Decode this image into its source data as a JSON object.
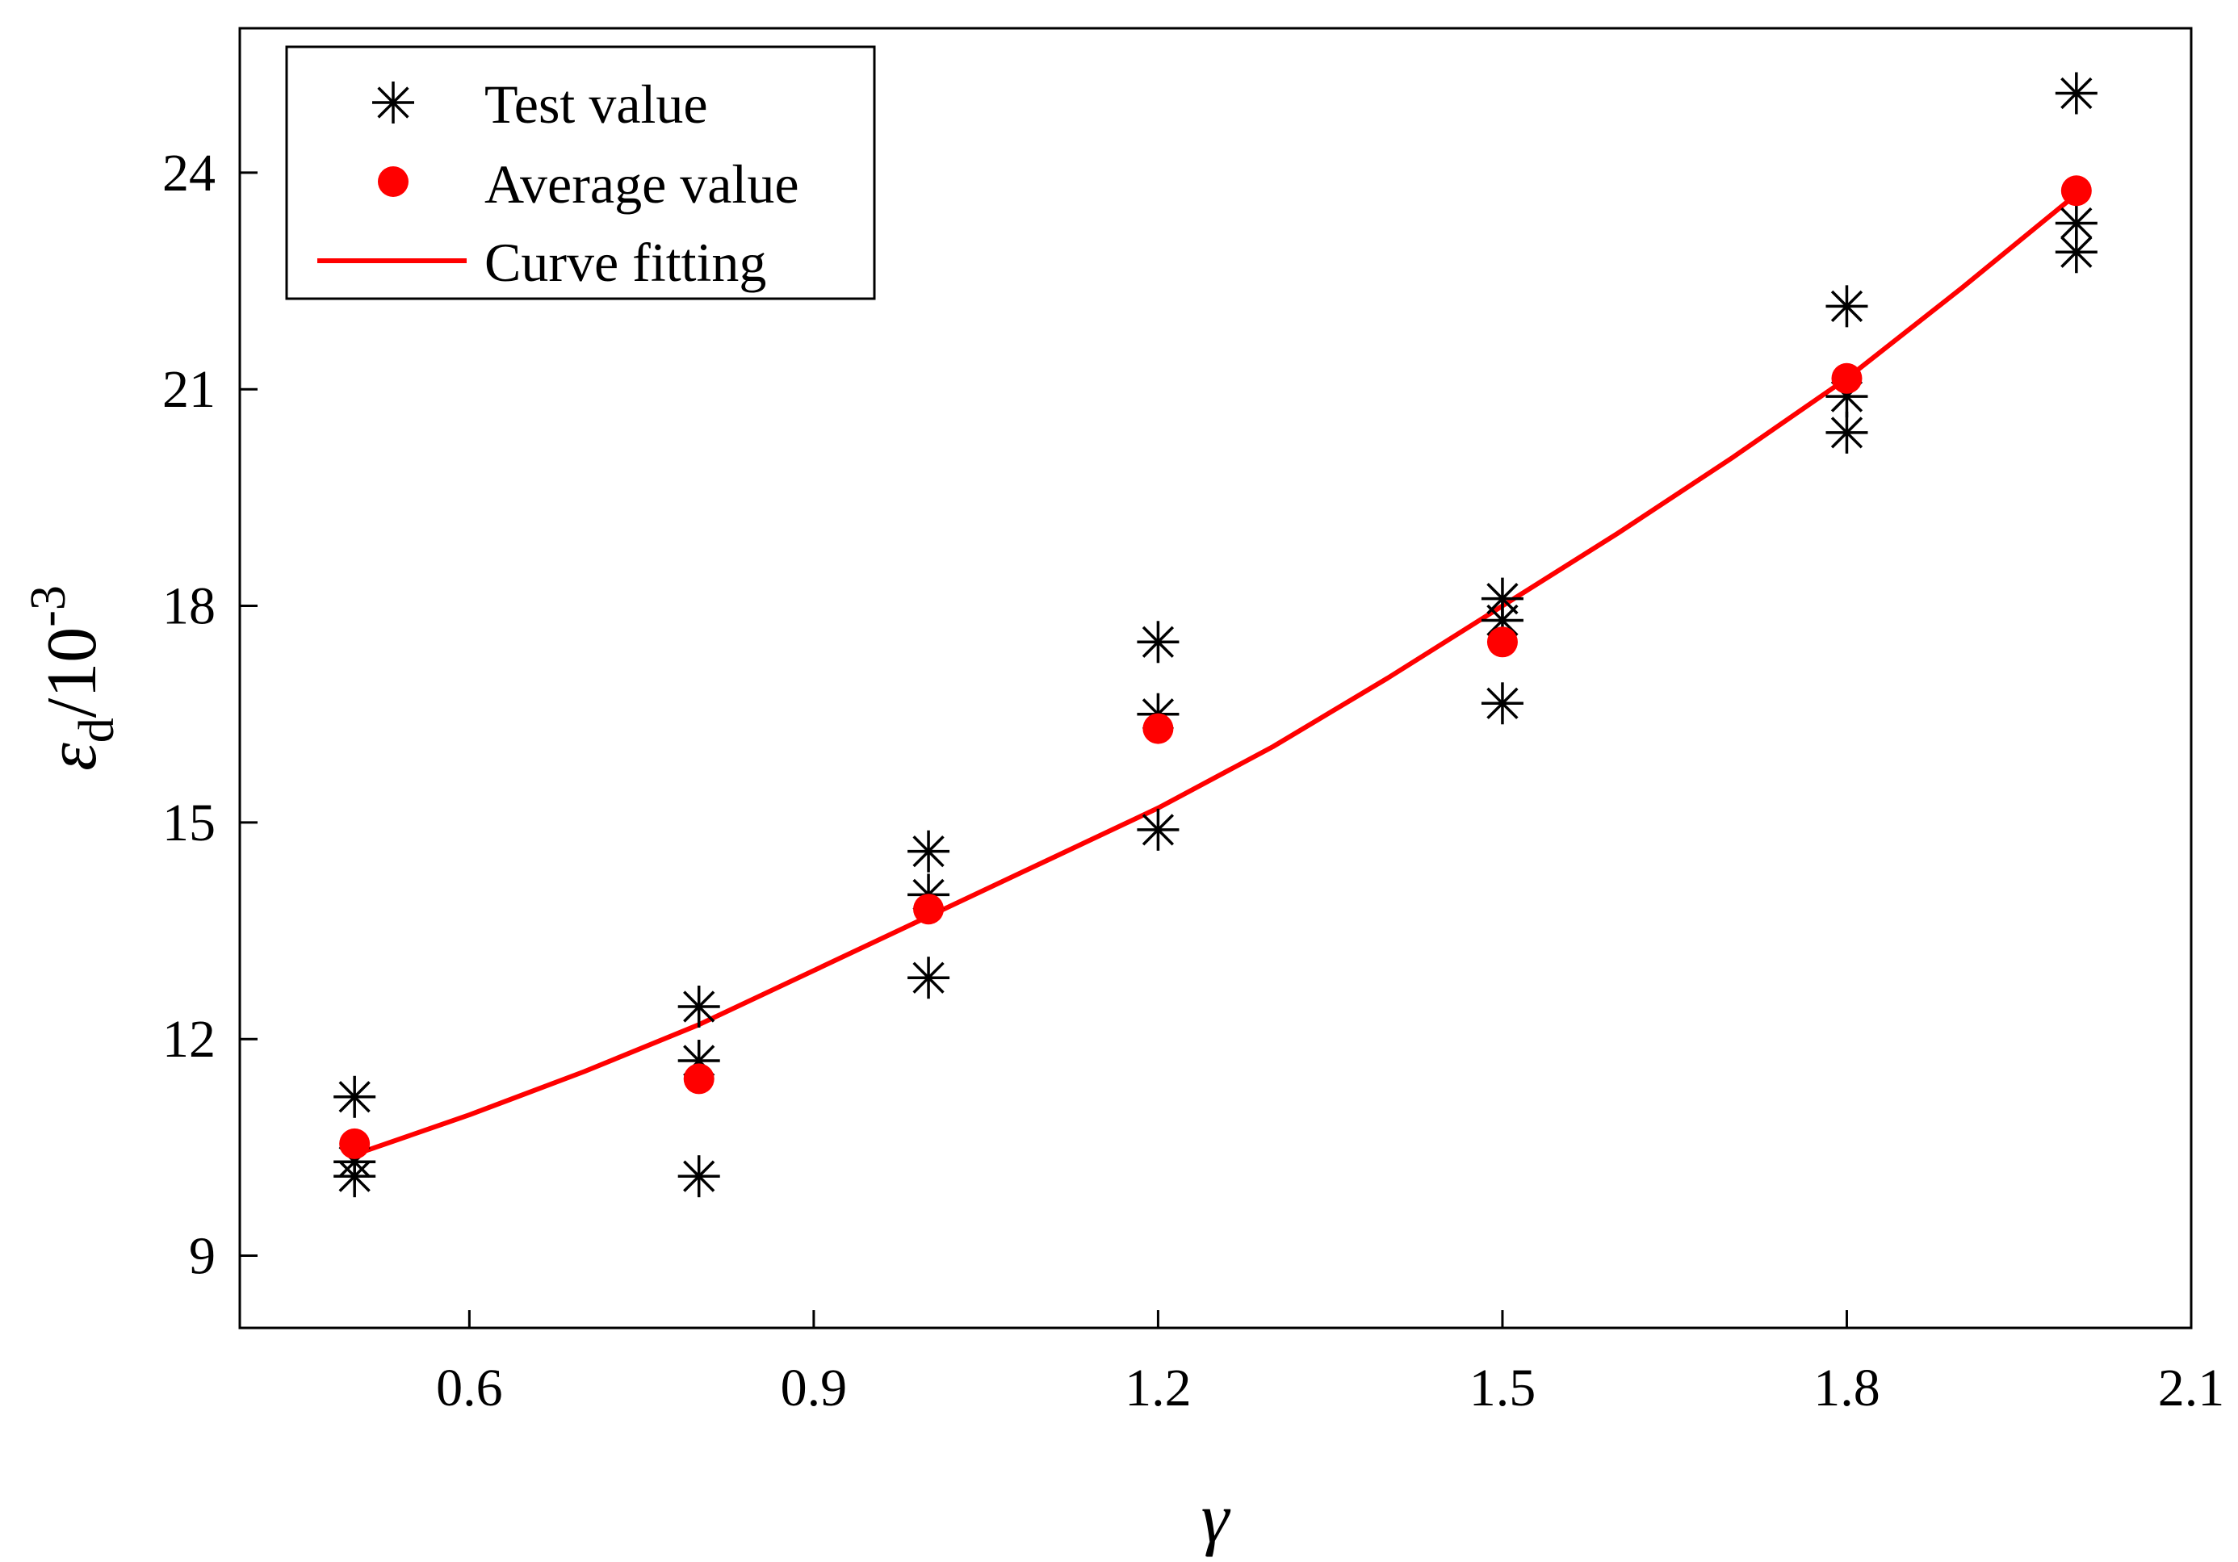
{
  "chart_data": {
    "type": "scatter",
    "x_axis": {
      "label": "γ",
      "range": [
        0.4,
        2.1
      ],
      "ticks": [
        0.6,
        0.9,
        1.2,
        1.5,
        1.8,
        2.1
      ],
      "tick_labels": [
        "0.6",
        "0.9",
        "1.2",
        "1.5",
        "1.8",
        "2.1"
      ]
    },
    "y_axis": {
      "label_symbol": "ε",
      "label_subscript": "d",
      "label_text": "/10",
      "label_superscript": "-3",
      "range": [
        8.0,
        26.0
      ],
      "ticks": [
        9,
        12,
        15,
        18,
        21,
        24
      ],
      "tick_labels": [
        "9",
        "12",
        "15",
        "18",
        "21",
        "24"
      ]
    },
    "grid": false,
    "legend": {
      "position": "top-left",
      "entries": [
        {
          "label": "Test value",
          "marker": "asterisk",
          "color": "#000000"
        },
        {
          "label": "Average value",
          "marker": "filled-circle",
          "color": "#ff0000"
        },
        {
          "label": "Curve fitting",
          "marker": "line",
          "color": "#ff0000"
        }
      ]
    },
    "series": [
      {
        "name": "Test value",
        "type": "scatter",
        "marker": "asterisk",
        "color": "#000000",
        "points": [
          [
            0.5,
            11.2
          ],
          [
            0.5,
            10.3
          ],
          [
            0.5,
            10.1
          ],
          [
            0.8,
            12.45
          ],
          [
            0.8,
            11.7
          ],
          [
            0.8,
            10.1
          ],
          [
            1.0,
            14.6
          ],
          [
            1.0,
            14.0
          ],
          [
            1.0,
            12.85
          ],
          [
            1.2,
            17.5
          ],
          [
            1.2,
            16.5
          ],
          [
            1.2,
            14.9
          ],
          [
            1.5,
            18.1
          ],
          [
            1.5,
            17.8
          ],
          [
            1.5,
            16.65
          ],
          [
            1.8,
            22.15
          ],
          [
            1.8,
            20.9
          ],
          [
            1.8,
            20.4
          ],
          [
            2.0,
            25.1
          ],
          [
            2.0,
            23.3
          ],
          [
            2.0,
            22.9
          ]
        ]
      },
      {
        "name": "Average value",
        "type": "scatter",
        "marker": "filled-circle",
        "color": "#ff0000",
        "points": [
          [
            0.5,
            10.55
          ],
          [
            0.8,
            11.45
          ],
          [
            1.0,
            13.8
          ],
          [
            1.2,
            16.3
          ],
          [
            1.5,
            17.5
          ],
          [
            1.8,
            21.15
          ],
          [
            2.0,
            23.75
          ]
        ]
      },
      {
        "name": "Curve fitting",
        "type": "line",
        "color": "#ff0000",
        "points": [
          [
            0.5,
            10.4
          ],
          [
            0.6,
            10.95
          ],
          [
            0.7,
            11.55
          ],
          [
            0.8,
            12.2
          ],
          [
            0.9,
            12.95
          ],
          [
            1.0,
            13.7
          ],
          [
            1.1,
            14.45
          ],
          [
            1.2,
            15.2
          ],
          [
            1.3,
            16.05
          ],
          [
            1.4,
            17.0
          ],
          [
            1.5,
            18.0
          ],
          [
            1.6,
            19.0
          ],
          [
            1.7,
            20.05
          ],
          [
            1.8,
            21.15
          ],
          [
            1.9,
            22.4
          ],
          [
            2.0,
            23.7
          ]
        ]
      }
    ]
  }
}
